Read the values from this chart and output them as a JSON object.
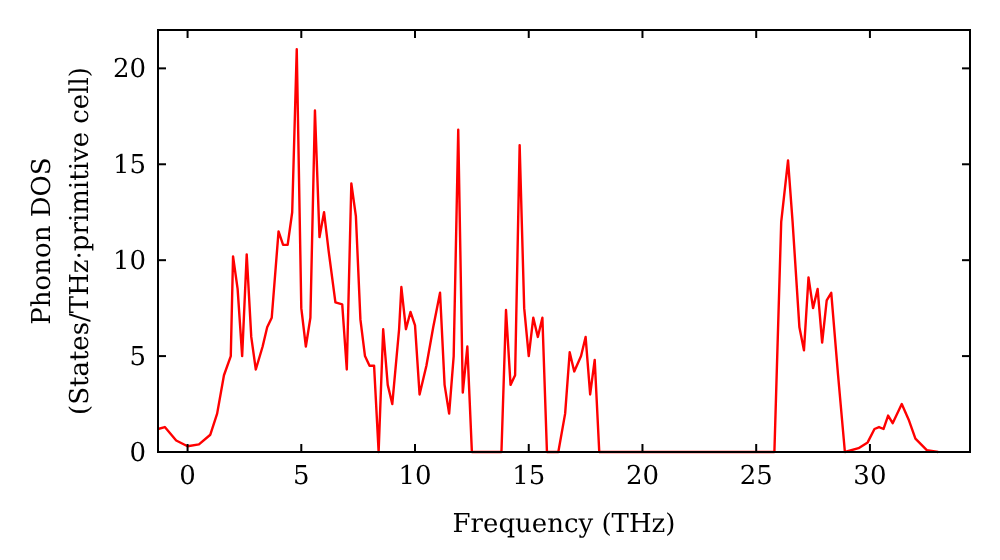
{
  "chart_data": {
    "type": "line",
    "xlabel": "Frequency (THz)",
    "ylabel": "Phonon DOS\n(States/THz·primitive cell)",
    "xlim": [
      -1.3,
      34.4
    ],
    "ylim": [
      0,
      22
    ],
    "xticks": [
      0,
      5,
      10,
      15,
      20,
      25,
      30
    ],
    "yticks": [
      0,
      5,
      10,
      15,
      20
    ],
    "grid": false,
    "series": [
      {
        "color": "#ff0000",
        "x": [
          -1.3,
          -1,
          -0.5,
          0,
          0.5,
          1,
          1.3,
          1.6,
          1.9,
          2.0,
          2.2,
          2.4,
          2.6,
          2.8,
          3.0,
          3.3,
          3.5,
          3.7,
          4.0,
          4.2,
          4.4,
          4.6,
          4.8,
          5.0,
          5.2,
          5.4,
          5.6,
          5.8,
          6.0,
          6.2,
          6.5,
          6.8,
          7.0,
          7.2,
          7.4,
          7.6,
          7.8,
          8.0,
          8.2,
          8.4,
          8.6,
          8.8,
          9.0,
          9.3,
          9.4,
          9.6,
          9.8,
          10.0,
          10.2,
          10.5,
          10.8,
          11.1,
          11.3,
          11.5,
          11.7,
          11.9,
          12.1,
          12.3,
          12.5,
          13.8,
          14.0,
          14.2,
          14.4,
          14.6,
          14.8,
          15.0,
          15.2,
          15.4,
          15.6,
          15.8,
          16.3,
          16.6,
          16.8,
          17.0,
          17.3,
          17.5,
          17.7,
          17.9,
          18.1,
          25.8,
          26.1,
          26.4,
          26.6,
          26.9,
          27.1,
          27.3,
          27.5,
          27.7,
          27.9,
          28.1,
          28.3,
          28.6,
          28.9,
          29.5,
          29.9,
          30.2,
          30.4,
          30.6,
          30.8,
          31.0,
          31.4,
          31.7,
          32.0,
          32.5,
          33
        ],
        "values": [
          1.2,
          1.3,
          0.6,
          0.3,
          0.4,
          0.9,
          2,
          4,
          5,
          10.2,
          8.5,
          5,
          10.3,
          6,
          4.3,
          5.5,
          6.5,
          7,
          11.5,
          10.8,
          10.8,
          12.5,
          21,
          7.5,
          5.5,
          7,
          17.8,
          11.2,
          12.5,
          10.5,
          7.8,
          7.7,
          4.3,
          14,
          12.3,
          6.9,
          5,
          4.5,
          4.5,
          0,
          6.4,
          3.5,
          2.5,
          6.4,
          8.6,
          6.4,
          7.3,
          6.6,
          3.0,
          4.5,
          6.5,
          8.3,
          3.5,
          2.0,
          5,
          16.8,
          3.1,
          5.5,
          0,
          0,
          7.4,
          3.5,
          4,
          16,
          7.5,
          5,
          7,
          6,
          7,
          0,
          0,
          2,
          5.2,
          4.2,
          5,
          6,
          3,
          4.8,
          0,
          0,
          12,
          15.2,
          12,
          6.5,
          5.3,
          9.1,
          7.5,
          8.5,
          5.7,
          7.9,
          8.3,
          4,
          0,
          0.2,
          0.5,
          1.2,
          1.3,
          1.2,
          1.9,
          1.5,
          2.5,
          1.7,
          0.7,
          0.1,
          0
        ]
      }
    ]
  }
}
